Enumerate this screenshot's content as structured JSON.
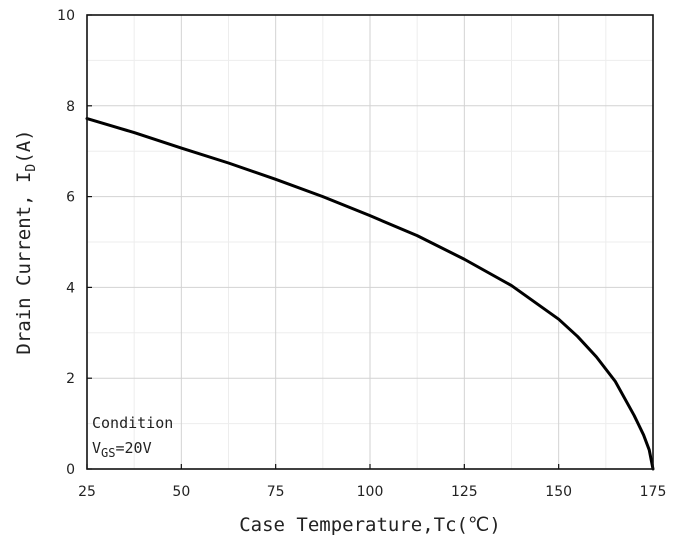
{
  "chart_data": {
    "type": "line",
    "xlabel": "Case Temperature,Tc(℃)",
    "ylabel": {
      "main": "Drain Current, I",
      "subscript": "D",
      "suffix": "(A)"
    },
    "xlim": [
      25,
      175
    ],
    "ylim": [
      0,
      10
    ],
    "x_ticks": [
      25,
      50,
      75,
      100,
      125,
      150,
      175
    ],
    "y_ticks": [
      0,
      2,
      4,
      6,
      8,
      10
    ],
    "x_minor_step": 12.5,
    "y_minor_step": 1,
    "grid": true,
    "series": [
      {
        "color": "#000000",
        "x": [
          25,
          37.5,
          50,
          62.5,
          75,
          87.5,
          100,
          112.5,
          125,
          137.5,
          150,
          155,
          160,
          165,
          170,
          172.5,
          174,
          175
        ],
        "y": [
          7.72,
          7.41,
          7.07,
          6.74,
          6.38,
          6.0,
          5.58,
          5.14,
          4.62,
          4.04,
          3.3,
          2.92,
          2.47,
          1.93,
          1.18,
          0.75,
          0.42,
          0.0
        ]
      }
    ],
    "annotation": {
      "line1": "Condition",
      "line2": {
        "main": "V",
        "subscript": "GS",
        "suffix": "=20V"
      }
    }
  }
}
